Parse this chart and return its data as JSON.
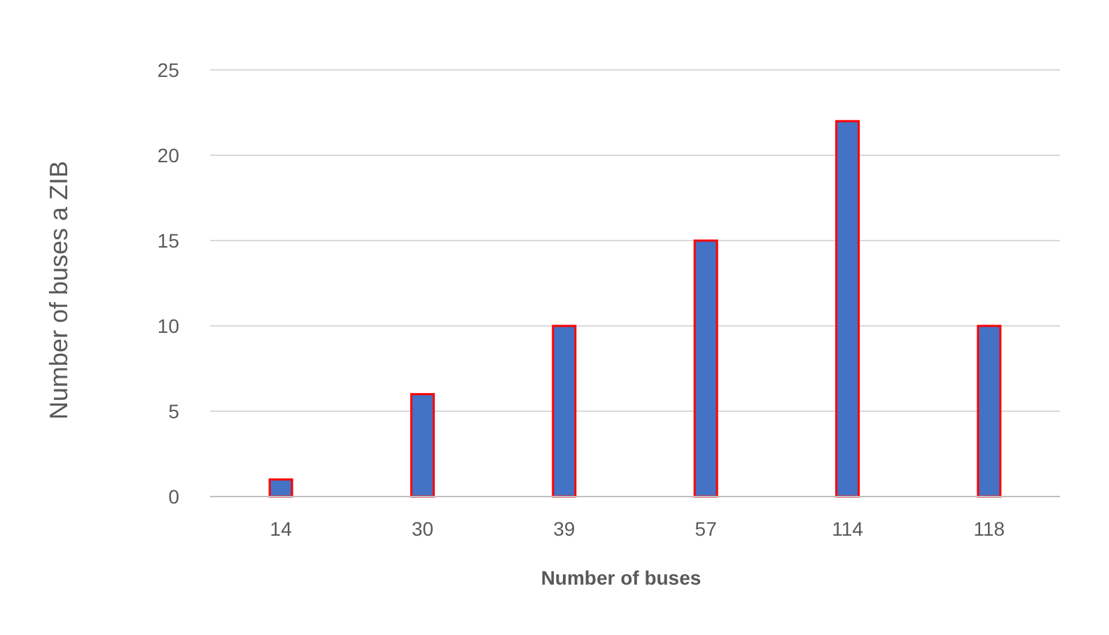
{
  "chart_data": {
    "type": "bar",
    "xlabel": "Number of buses",
    "ylabel": "Number of  buses a ZIB",
    "categories": [
      "14",
      "30",
      "39",
      "57",
      "114",
      "118"
    ],
    "series": [
      {
        "color": "#4472c4",
        "values": [
          1,
          6,
          10,
          15,
          22,
          10
        ]
      }
    ],
    "ylim": [
      0,
      25
    ],
    "yticks": [
      0,
      5,
      10,
      15,
      20,
      25
    ],
    "grid": "y"
  }
}
